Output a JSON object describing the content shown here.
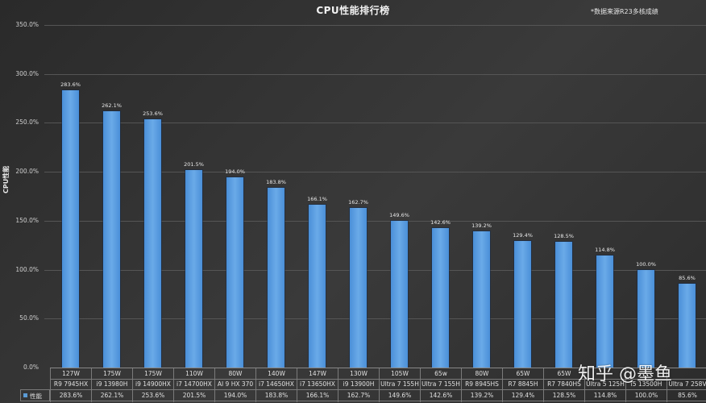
{
  "header": {
    "title": "CPU性能排行榜",
    "note": "*数据来源R23多核成绩"
  },
  "legend": {
    "label": "性能",
    "swatch_color": "#5b9bd5"
  },
  "watermark": "知乎 @墨鱼",
  "axis": {
    "ylabel": "CPU性能",
    "yticks": [
      "350.0%",
      "300.0%",
      "250.0%",
      "200.0%",
      "150.0%",
      "100.0%",
      "50.0%",
      "0.0%"
    ]
  },
  "chart_data": {
    "type": "bar",
    "title": "CPU性能排行榜",
    "subtitle": "*数据来源R23多核成绩",
    "xlabel": "",
    "ylabel": "CPU性能",
    "ylim": [
      0,
      350
    ],
    "ytick_step": 50,
    "grid": true,
    "legend_position": "table-left",
    "categories": [
      "R9 7945HX",
      "i9 13980H",
      "i9 14900HX",
      "i7 14700HX",
      "AI 9 HX 370",
      "i7 14650HX",
      "i7 13650HX",
      "i9 13900H",
      "Ultra 7 155H",
      "Ultra 7 155H",
      "R9 8945HS",
      "R7 8845H",
      "R7 7840HS",
      "Ultra 5 125H",
      "i5 13500H",
      "Ultra 7 258V"
    ],
    "power": [
      "127W",
      "175W",
      "175W",
      "110W",
      "80W",
      "140W",
      "147W",
      "130W",
      "105W",
      "65w",
      "80W",
      "65W",
      "65W",
      "",
      "",
      ""
    ],
    "series": [
      {
        "name": "性能",
        "values": [
          283.6,
          262.1,
          253.6,
          201.5,
          194.0,
          183.8,
          166.1,
          162.7,
          149.6,
          142.6,
          139.2,
          129.4,
          128.5,
          114.8,
          100.0,
          85.6
        ],
        "labels": [
          "283.6%",
          "262.1%",
          "253.6%",
          "201.5%",
          "194.0%",
          "183.8%",
          "166.1%",
          "162.7%",
          "149.6%",
          "142.6%",
          "139.2%",
          "129.4%",
          "128.5%",
          "114.8%",
          "100.0%",
          "85.6%"
        ]
      }
    ]
  }
}
